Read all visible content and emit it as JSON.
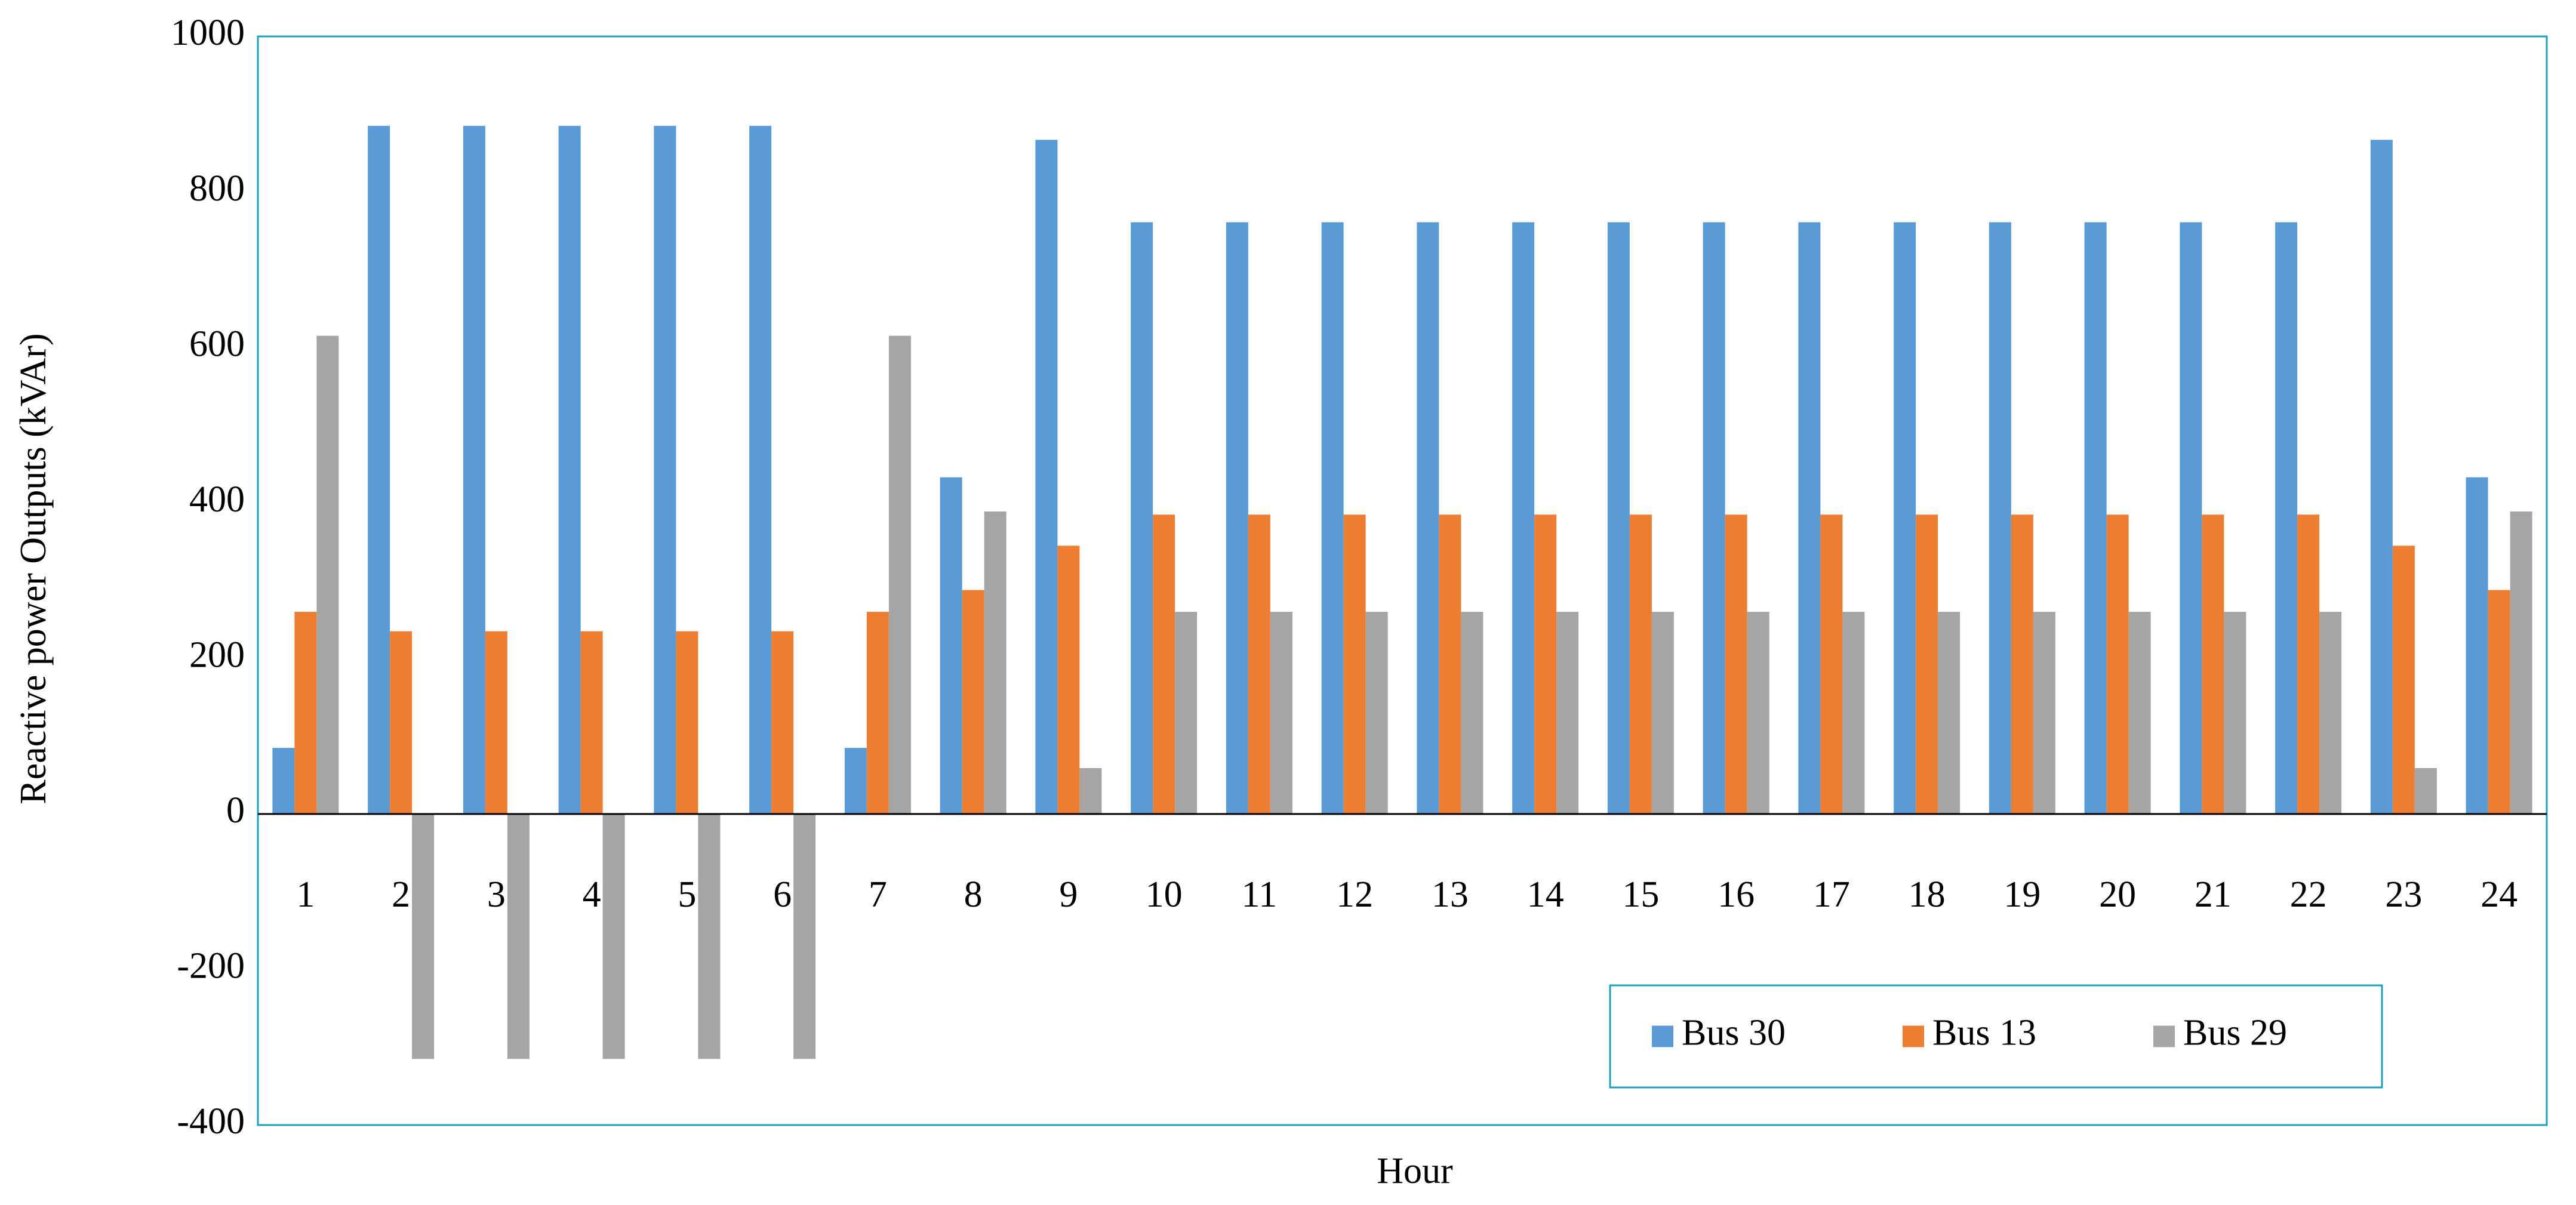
{
  "chart_data": {
    "type": "bar",
    "x_label": "Hour",
    "y_label": "Reactive power Outputs (kVAr)",
    "categories": [
      "1",
      "2",
      "3",
      "4",
      "5",
      "6",
      "7",
      "8",
      "9",
      "10",
      "11",
      "12",
      "13",
      "14",
      "15",
      "16",
      "17",
      "18",
      "19",
      "20",
      "21",
      "22",
      "23",
      "24"
    ],
    "series": [
      {
        "name": "Bus 30",
        "color": "#5b9bd5",
        "values": [
          85,
          885,
          885,
          885,
          885,
          885,
          85,
          433,
          867,
          761,
          761,
          761,
          761,
          761,
          761,
          761,
          761,
          761,
          761,
          761,
          761,
          761,
          867,
          433
        ]
      },
      {
        "name": "Bus 13",
        "color": "#ed7d31",
        "values": [
          260,
          235,
          235,
          235,
          235,
          235,
          260,
          288,
          345,
          385,
          385,
          385,
          385,
          385,
          385,
          385,
          385,
          385,
          385,
          385,
          385,
          385,
          345,
          288
        ]
      },
      {
        "name": "Bus 29",
        "color": "#a5a5a5",
        "values": [
          615,
          -315,
          -315,
          -315,
          -315,
          -315,
          615,
          389,
          59,
          260,
          260,
          260,
          260,
          260,
          260,
          260,
          260,
          260,
          260,
          260,
          260,
          260,
          59,
          389
        ]
      }
    ],
    "ylim": [
      -400,
      1000
    ],
    "yticks": [
      -400,
      -200,
      0,
      200,
      400,
      600,
      800,
      1000
    ],
    "grid": false,
    "legend": "lower right"
  }
}
